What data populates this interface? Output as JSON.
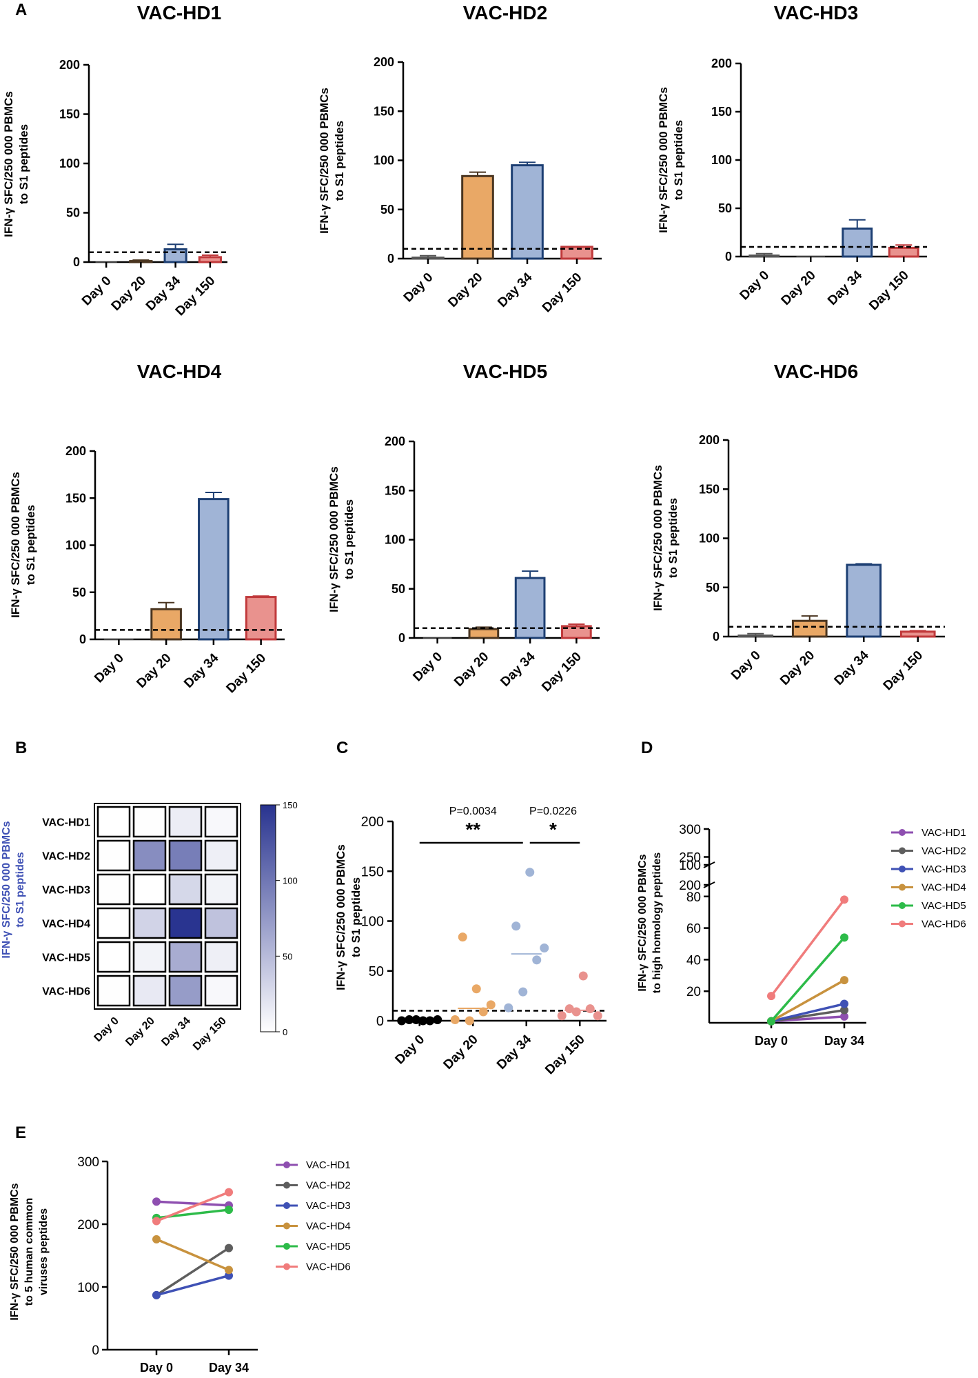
{
  "figure": {
    "panel_labels": [
      "A",
      "B",
      "C",
      "D",
      "E"
    ],
    "threshold": 10
  },
  "colors": {
    "day0": "#9a9a9a",
    "day20": "#e9a866",
    "day34": "#a0b4d6",
    "day150": "#e9928e",
    "day20_edge": "#4a3520",
    "day34_edge": "#1d3f73",
    "day150_edge": "#c0393b",
    "heat_max": "#28338f",
    "hd1": "#8e4fb0",
    "hd2": "#5e5e5e",
    "hd3": "#3f51b5",
    "hd4": "#c8923e",
    "hd5": "#2dbb49",
    "hd6": "#f07c7c"
  },
  "chart_data": [
    {
      "type": "bar",
      "panel": "A",
      "title": "VAC-HD1",
      "categories": [
        "Day 0",
        "Day 20",
        "Day 34",
        "Day 150"
      ],
      "values": [
        0,
        1,
        13,
        5
      ],
      "errors": [
        0,
        1,
        5,
        2
      ],
      "ylabel": [
        "IFN-γ SFC/250 000 PBMCs",
        "to S1 peptides"
      ],
      "ylim": [
        0,
        200
      ],
      "yticks": [
        "0",
        "50",
        "100",
        "150",
        "200"
      ],
      "threshold": 10
    },
    {
      "type": "bar",
      "panel": "A",
      "title": "VAC-HD2",
      "categories": [
        "Day 0",
        "Day 20",
        "Day 34",
        "Day 150"
      ],
      "values": [
        1,
        84,
        95,
        12
      ],
      "errors": [
        2,
        4,
        3,
        0
      ],
      "ylabel": [
        "IFN-γ SFC/250 000 PBMCs",
        "to S1 peptides"
      ],
      "ylim": [
        0,
        200
      ],
      "yticks": [
        "0",
        "50",
        "100",
        "150",
        "200"
      ],
      "threshold": 10
    },
    {
      "type": "bar",
      "panel": "A",
      "title": "VAC-HD3",
      "categories": [
        "Day 0",
        "Day 20",
        "Day 34",
        "Day 150"
      ],
      "values": [
        1,
        0,
        29,
        9
      ],
      "errors": [
        2,
        0,
        9,
        3
      ],
      "ylabel": [
        "IFN-γ SFC/250 000 PBMCs",
        "to S1 peptides"
      ],
      "ylim": [
        0,
        200
      ],
      "yticks": [
        "0",
        "50",
        "100",
        "150",
        "200"
      ],
      "threshold": 10
    },
    {
      "type": "bar",
      "panel": "A",
      "title": "VAC-HD4",
      "categories": [
        "Day 0",
        "Day 20",
        "Day 34",
        "Day 150"
      ],
      "values": [
        0,
        32,
        149,
        45
      ],
      "errors": [
        0,
        7,
        7,
        1
      ],
      "ylabel": [
        "IFN-γ SFC/250 000 PBMCs",
        "to S1 peptides"
      ],
      "ylim": [
        0,
        200
      ],
      "yticks": [
        "0",
        "50",
        "100",
        "150",
        "200"
      ],
      "threshold": 10
    },
    {
      "type": "bar",
      "panel": "A",
      "title": "VAC-HD5",
      "categories": [
        "Day 0",
        "Day 20",
        "Day 34",
        "Day 150"
      ],
      "values": [
        0,
        9,
        61,
        12
      ],
      "errors": [
        0,
        2,
        7,
        2
      ],
      "ylabel": [
        "IFN-γ SFC/250 000 PBMCs",
        "to S1 peptides"
      ],
      "ylim": [
        0,
        200
      ],
      "yticks": [
        "0",
        "50",
        "100",
        "150",
        "200"
      ],
      "threshold": 10
    },
    {
      "type": "bar",
      "panel": "A",
      "title": "VAC-HD6",
      "categories": [
        "Day 0",
        "Day 20",
        "Day 34",
        "Day 150"
      ],
      "values": [
        1,
        16,
        73,
        5
      ],
      "errors": [
        2,
        5,
        1,
        1
      ],
      "ylabel": [
        "IFN-γ SFC/250 000 PBMCs",
        "to S1 peptides"
      ],
      "ylim": [
        0,
        200
      ],
      "yticks": [
        "0",
        "50",
        "100",
        "150",
        "200"
      ],
      "threshold": 10
    },
    {
      "type": "heatmap",
      "panel": "B",
      "rows": [
        "VAC-HD1",
        "VAC-HD2",
        "VAC-HD3",
        "VAC-HD4",
        "VAC-HD5",
        "VAC-HD6"
      ],
      "columns": [
        "Day 0",
        "Day 20",
        "Day 34",
        "Day 150"
      ],
      "values": [
        [
          0,
          1,
          13,
          5
        ],
        [
          1,
          84,
          95,
          12
        ],
        [
          1,
          0,
          29,
          9
        ],
        [
          0,
          32,
          149,
          45
        ],
        [
          0,
          9,
          61,
          12
        ],
        [
          1,
          16,
          73,
          5
        ]
      ],
      "colorbar_range": [
        0,
        150
      ],
      "colorbar_ticks": [
        "0",
        "50",
        "100",
        "150"
      ],
      "ylabel": [
        "IFN-γ SFC/250 000 PBMCs",
        "to S1 peptides"
      ]
    },
    {
      "type": "scatter",
      "panel": "C",
      "categories": [
        "Day 0",
        "Day 20",
        "Day 34",
        "Day 150"
      ],
      "points": [
        [
          0,
          1,
          1,
          0,
          0,
          1
        ],
        [
          1,
          84,
          0,
          32,
          9,
          16
        ],
        [
          13,
          95,
          29,
          149,
          61,
          73
        ],
        [
          5,
          12,
          9,
          45,
          12,
          5
        ]
      ],
      "medians": [
        0.5,
        12.5,
        67,
        10.5
      ],
      "ylabel": [
        "IFN-γ SFC/250 000 PBMCs",
        "to S1 peptides"
      ],
      "ylim": [
        0,
        200
      ],
      "yticks": [
        "0",
        "50",
        "100",
        "150",
        "200"
      ],
      "threshold": 10,
      "annotations": [
        {
          "from": "Day 0",
          "to": "Day 34",
          "stars": "**",
          "p": "P=0.0034"
        },
        {
          "from": "Day 34",
          "to": "Day 150",
          "stars": "*",
          "p": "P=0.0226"
        }
      ]
    },
    {
      "type": "line",
      "panel": "D",
      "x": [
        "Day 0",
        "Day 34"
      ],
      "series": [
        {
          "name": "VAC-HD1",
          "values": [
            1,
            4
          ]
        },
        {
          "name": "VAC-HD2",
          "values": [
            1,
            8
          ]
        },
        {
          "name": "VAC-HD3",
          "values": [
            1,
            12
          ]
        },
        {
          "name": "VAC-HD4",
          "values": [
            1,
            27
          ]
        },
        {
          "name": "VAC-HD5",
          "values": [
            1,
            54
          ]
        },
        {
          "name": "VAC-HD6",
          "values": [
            17,
            78
          ]
        }
      ],
      "ylabel": [
        "IFN-γ SFC/250 000 PBMCs",
        "to high homology peptides"
      ],
      "ylim_lower": [
        0,
        100
      ],
      "yticks_lower": [
        "20",
        "40",
        "60",
        "80",
        "100"
      ],
      "ylim_upper": [
        200,
        300
      ],
      "yticks_upper": [
        "200",
        "250",
        "300"
      ]
    },
    {
      "type": "line",
      "panel": "E",
      "x": [
        "Day 0",
        "Day 34"
      ],
      "series": [
        {
          "name": "VAC-HD1",
          "values": [
            236,
            230
          ]
        },
        {
          "name": "VAC-HD2",
          "values": [
            87,
            162
          ]
        },
        {
          "name": "VAC-HD3",
          "values": [
            87,
            118
          ]
        },
        {
          "name": "VAC-HD4",
          "values": [
            176,
            127
          ]
        },
        {
          "name": "VAC-HD5",
          "values": [
            210,
            223
          ]
        },
        {
          "name": "VAC-HD6",
          "values": [
            205,
            251
          ]
        }
      ],
      "ylabel": [
        "IFN-γ SFC/250 000 PBMCs",
        "to 5 human common",
        "viruses peptides"
      ],
      "ylim": [
        0,
        300
      ],
      "yticks": [
        "0",
        "100",
        "200",
        "300"
      ]
    }
  ]
}
